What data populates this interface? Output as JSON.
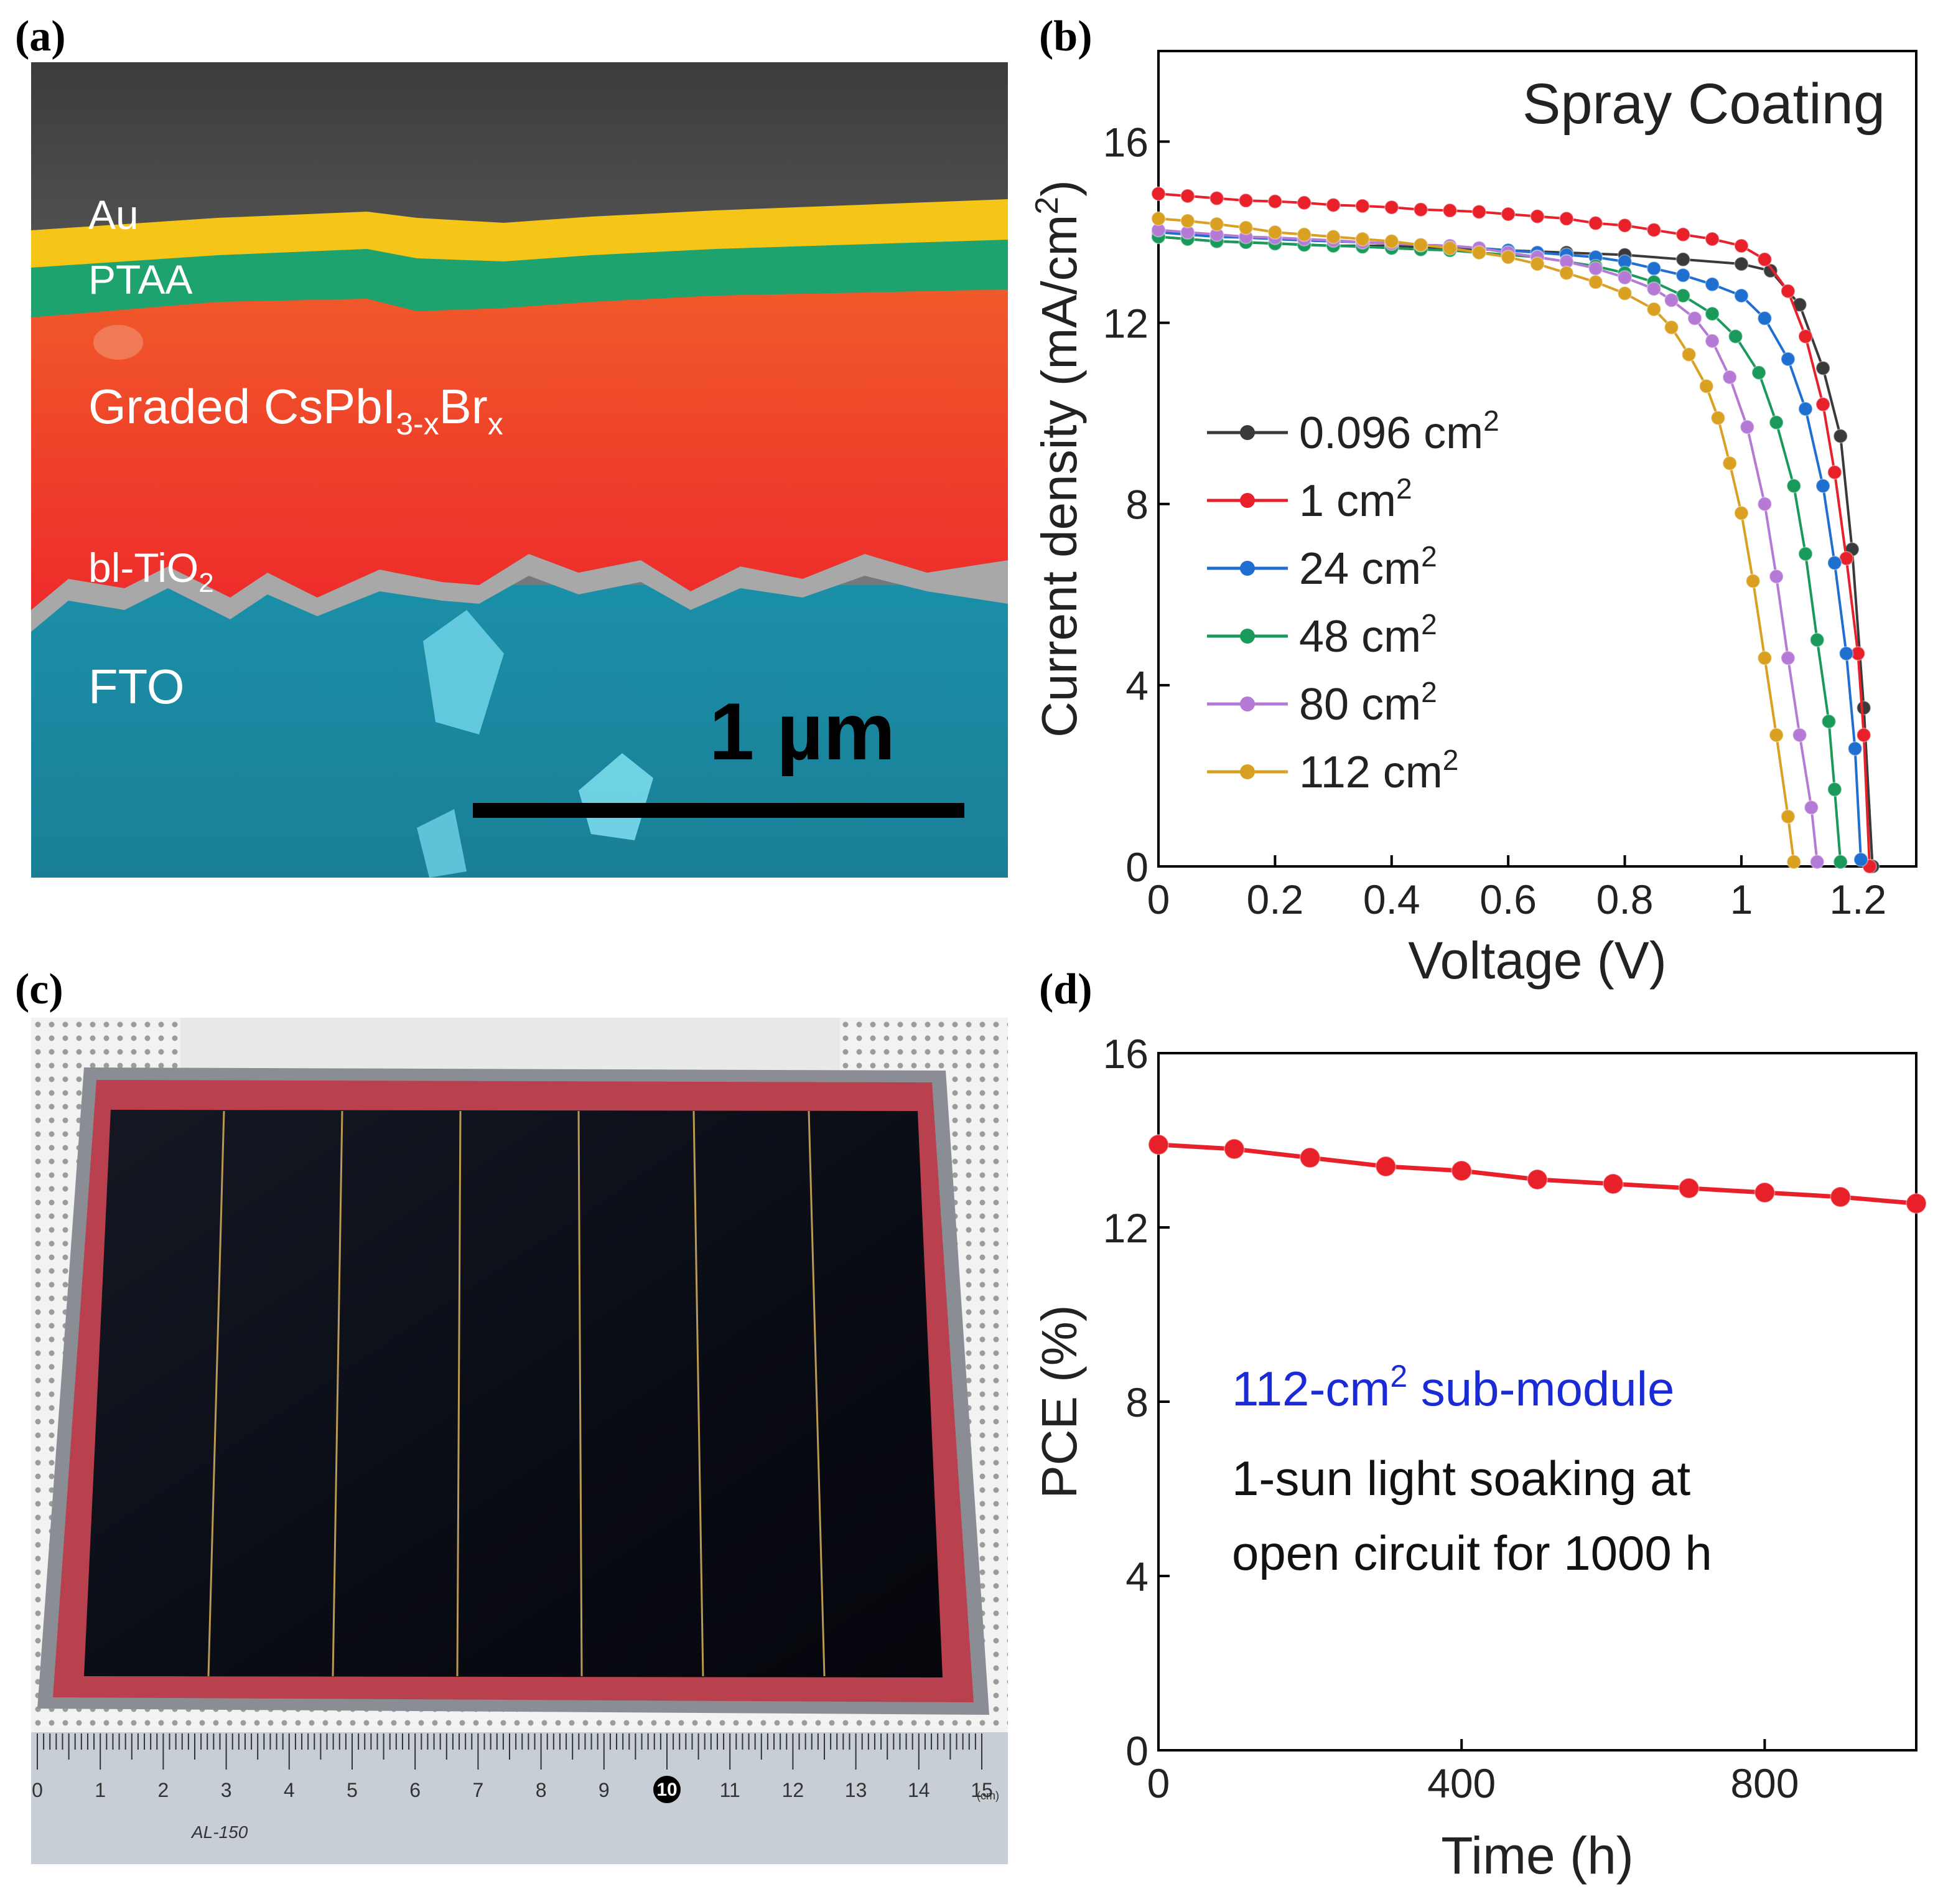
{
  "panels": {
    "a": {
      "letter": "(a)",
      "layers": [
        {
          "key": "au",
          "label": "Au"
        },
        {
          "key": "ptaa",
          "label": "PTAA"
        },
        {
          "key": "perovskite",
          "label": "Graded CsPbI",
          "sub": "3-x",
          "label2": "Br",
          "sub2": "x"
        },
        {
          "key": "bl",
          "label": "bl-TiO",
          "sub": "2"
        },
        {
          "key": "fto",
          "label": "FTO"
        }
      ],
      "scale_bar_label": "1 µm",
      "colors": {
        "au": "#f2c318",
        "ptaa": "#1fa36e",
        "perovskite": "#ef3a2a",
        "tio2": "#9a9a9a",
        "fto": "#1f8fa6",
        "top": "#5a5a5a"
      }
    },
    "b": {
      "letter": "(b)"
    },
    "c": {
      "letter": "(c)",
      "ruler_numbers": [
        "0",
        "1",
        "2",
        "3",
        "4",
        "5",
        "6",
        "7",
        "8",
        "9",
        "10",
        "11",
        "12",
        "13",
        "14",
        "15"
      ],
      "ruler_model": "AL-150",
      "ruler_unit": "(cm)"
    },
    "d": {
      "letter": "(d)"
    }
  },
  "chart_data": [
    {
      "type": "line",
      "panel": "b",
      "annotation": "Spray Coating",
      "xlabel": "Voltage (V)",
      "ylabel": "Current density (mA/cm2)",
      "ylabel_parts": {
        "main": "Current density (mA/cm",
        "sup": "2",
        "end": ")"
      },
      "xlim": [
        0,
        1.3
      ],
      "ylim": [
        0,
        18
      ],
      "xticks": [
        0,
        0.2,
        0.4,
        0.6,
        0.8,
        1,
        1.2
      ],
      "xtick_labels": [
        "0",
        "0.2",
        "0.4",
        "0.6",
        "0.8",
        "1",
        "1.2"
      ],
      "yticks": [
        0,
        4,
        8,
        12,
        16
      ],
      "ytick_labels": [
        "0",
        "4",
        "8",
        "12",
        "16"
      ],
      "legend_position": "left-center",
      "series": [
        {
          "name": "0.096 cm2",
          "label_main": "0.096 cm",
          "label_sup": "2",
          "color": "#3a3a3a",
          "jsc": 13.9,
          "voc": 1.225,
          "x": [
            0,
            0.1,
            0.2,
            0.3,
            0.4,
            0.5,
            0.6,
            0.7,
            0.8,
            0.9,
            1.0,
            1.05,
            1.1,
            1.14,
            1.17,
            1.19,
            1.21,
            1.225
          ],
          "y": [
            13.9,
            13.8,
            13.75,
            13.7,
            13.7,
            13.65,
            13.6,
            13.55,
            13.5,
            13.4,
            13.3,
            13.15,
            12.4,
            11.0,
            9.5,
            7.0,
            3.5,
            0
          ]
        },
        {
          "name": "1 cm2",
          "label_main": "1 cm",
          "label_sup": "2",
          "color": "#e8202a",
          "jsc": 14.85,
          "voc": 1.22,
          "x": [
            0,
            0.05,
            0.1,
            0.15,
            0.2,
            0.25,
            0.3,
            0.35,
            0.4,
            0.45,
            0.5,
            0.55,
            0.6,
            0.65,
            0.7,
            0.75,
            0.8,
            0.85,
            0.9,
            0.95,
            1.0,
            1.04,
            1.08,
            1.11,
            1.14,
            1.16,
            1.18,
            1.2,
            1.21,
            1.22
          ],
          "y": [
            14.85,
            14.8,
            14.75,
            14.7,
            14.68,
            14.65,
            14.6,
            14.58,
            14.55,
            14.5,
            14.48,
            14.45,
            14.4,
            14.35,
            14.3,
            14.2,
            14.15,
            14.05,
            13.95,
            13.85,
            13.7,
            13.4,
            12.7,
            11.7,
            10.2,
            8.7,
            6.8,
            4.7,
            2.9,
            0
          ]
        },
        {
          "name": "24 cm2",
          "label_main": "24 cm",
          "label_sup": "2",
          "color": "#1f6fd0",
          "jsc": 14.0,
          "voc": 1.205,
          "x": [
            0,
            0.05,
            0.1,
            0.15,
            0.2,
            0.25,
            0.3,
            0.35,
            0.4,
            0.45,
            0.5,
            0.55,
            0.6,
            0.65,
            0.7,
            0.75,
            0.8,
            0.85,
            0.9,
            0.95,
            1.0,
            1.04,
            1.08,
            1.11,
            1.14,
            1.16,
            1.18,
            1.195,
            1.205
          ],
          "y": [
            14.0,
            13.95,
            13.9,
            13.88,
            13.85,
            13.82,
            13.8,
            13.78,
            13.75,
            13.72,
            13.7,
            13.65,
            13.6,
            13.55,
            13.5,
            13.45,
            13.35,
            13.2,
            13.05,
            12.85,
            12.6,
            12.1,
            11.2,
            10.1,
            8.4,
            6.7,
            4.7,
            2.6,
            0.15
          ]
        },
        {
          "name": "48 cm2",
          "label_main": "48 cm",
          "label_sup": "2",
          "color": "#1a9a5a",
          "jsc": 13.9,
          "voc": 1.17,
          "x": [
            0,
            0.05,
            0.1,
            0.15,
            0.2,
            0.25,
            0.3,
            0.35,
            0.4,
            0.45,
            0.5,
            0.55,
            0.6,
            0.65,
            0.7,
            0.75,
            0.8,
            0.85,
            0.9,
            0.95,
            0.99,
            1.03,
            1.06,
            1.09,
            1.11,
            1.13,
            1.15,
            1.16,
            1.17
          ],
          "y": [
            13.9,
            13.85,
            13.8,
            13.78,
            13.75,
            13.72,
            13.7,
            13.68,
            13.65,
            13.62,
            13.6,
            13.55,
            13.5,
            13.45,
            13.35,
            13.25,
            13.1,
            12.9,
            12.6,
            12.2,
            11.7,
            10.9,
            9.8,
            8.4,
            6.9,
            5.0,
            3.2,
            1.7,
            0.1
          ]
        },
        {
          "name": "80 cm2",
          "label_main": "80 cm",
          "label_sup": "2",
          "color": "#b57ad6",
          "jsc": 14.05,
          "voc": 1.13,
          "x": [
            0,
            0.05,
            0.1,
            0.15,
            0.2,
            0.25,
            0.3,
            0.35,
            0.4,
            0.45,
            0.5,
            0.55,
            0.6,
            0.65,
            0.7,
            0.75,
            0.8,
            0.85,
            0.88,
            0.92,
            0.95,
            0.98,
            1.01,
            1.04,
            1.06,
            1.08,
            1.1,
            1.12,
            1.13
          ],
          "y": [
            14.05,
            14.0,
            13.95,
            13.9,
            13.88,
            13.85,
            13.82,
            13.78,
            13.75,
            13.72,
            13.7,
            13.65,
            13.55,
            13.45,
            13.35,
            13.2,
            13.0,
            12.75,
            12.5,
            12.1,
            11.6,
            10.8,
            9.7,
            8.0,
            6.4,
            4.6,
            2.9,
            1.3,
            0.1
          ]
        },
        {
          "name": "112 cm2",
          "label_main": "112 cm",
          "label_sup": "2",
          "color": "#d9a021",
          "jsc": 14.3,
          "voc": 1.09,
          "x": [
            0,
            0.05,
            0.1,
            0.15,
            0.2,
            0.25,
            0.3,
            0.35,
            0.4,
            0.45,
            0.5,
            0.55,
            0.6,
            0.65,
            0.7,
            0.75,
            0.8,
            0.85,
            0.88,
            0.91,
            0.94,
            0.96,
            0.98,
            1.0,
            1.02,
            1.04,
            1.06,
            1.08,
            1.09
          ],
          "y": [
            14.3,
            14.25,
            14.18,
            14.1,
            14.0,
            13.95,
            13.9,
            13.85,
            13.8,
            13.72,
            13.65,
            13.55,
            13.45,
            13.3,
            13.1,
            12.9,
            12.65,
            12.3,
            11.9,
            11.3,
            10.6,
            9.9,
            8.9,
            7.8,
            6.3,
            4.6,
            2.9,
            1.1,
            0.1
          ]
        }
      ]
    },
    {
      "type": "line",
      "panel": "d",
      "xlabel": "Time (h)",
      "ylabel": "PCE (%)",
      "xlim": [
        0,
        1000
      ],
      "ylim": [
        0,
        16
      ],
      "xticks": [
        0,
        400,
        800
      ],
      "xtick_labels": [
        "0",
        "400",
        "800"
      ],
      "yticks": [
        0,
        4,
        8,
        12,
        16
      ],
      "ytick_labels": [
        "0",
        "4",
        "8",
        "12",
        "16"
      ],
      "annotations": {
        "line1_main": "112-cm",
        "line1_sup": "2",
        "line1_end": " sub-module",
        "line2": "1-sun light soaking at",
        "line3": "open circuit for 1000 h"
      },
      "annotation_color": "#1a2bd6",
      "series": [
        {
          "name": "",
          "color": "#e8202a",
          "x": [
            0,
            100,
            200,
            300,
            400,
            500,
            600,
            700,
            800,
            900,
            1000
          ],
          "y": [
            13.9,
            13.8,
            13.6,
            13.4,
            13.3,
            13.1,
            13.0,
            12.9,
            12.8,
            12.7,
            12.55
          ]
        }
      ]
    }
  ]
}
